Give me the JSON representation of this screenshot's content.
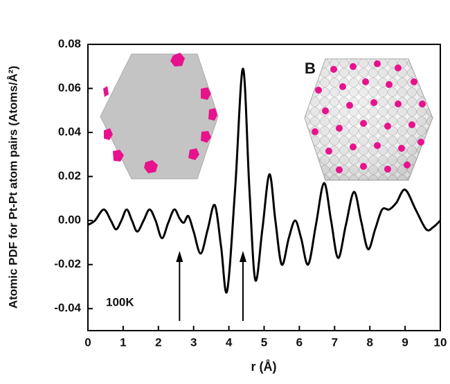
{
  "chart_data": {
    "type": "line",
    "x_label": "r (Å)",
    "y_label": "Atomic PDF for Pt-Pt atom pairs (Atoms/Å²)",
    "annotations": [
      "B",
      "100K"
    ],
    "arrows_x": [
      2.6,
      4.4
    ],
    "xlim": [
      0,
      10
    ],
    "ylim": [
      -0.05,
      0.08
    ],
    "xticks": [
      0,
      1,
      2,
      3,
      4,
      5,
      6,
      7,
      8,
      9,
      10
    ],
    "yticks": [
      0.08,
      0.06,
      0.04,
      0.02,
      {
        "value": 0,
        "label": "0.00"
      },
      -0.02,
      -0.04
    ],
    "color": "#000000",
    "x": [
      0,
      0.2,
      0.45,
      0.65,
      0.8,
      0.95,
      1.1,
      1.25,
      1.4,
      1.58,
      1.75,
      1.92,
      2.1,
      2.28,
      2.45,
      2.6,
      2.72,
      2.85,
      3.0,
      3.2,
      3.4,
      3.6,
      3.78,
      3.95,
      4.18,
      4.4,
      4.58,
      4.75,
      4.95,
      5.15,
      5.32,
      5.5,
      5.7,
      5.88,
      6.05,
      6.25,
      6.47,
      6.7,
      6.9,
      7.1,
      7.32,
      7.55,
      7.75,
      7.95,
      8.15,
      8.35,
      8.55,
      8.75,
      9.0,
      9.3,
      9.6,
      9.8,
      10.0
    ],
    "values": [
      -0.002,
      0,
      0.005,
      0,
      -0.004,
      0,
      0.005,
      0,
      -0.005,
      0,
      0.005,
      0,
      -0.008,
      -0.001,
      0.005,
      0.001,
      -0.001,
      0.002,
      -0.005,
      -0.015,
      -0.004,
      0.007,
      -0.012,
      -0.032,
      0.015,
      0.069,
      0.015,
      -0.027,
      -0.004,
      0.021,
      0,
      -0.02,
      -0.008,
      0,
      -0.008,
      -0.02,
      -0.002,
      0.017,
      0,
      -0.017,
      -0.002,
      0.013,
      0,
      -0.013,
      -0.004,
      0.005,
      0.005,
      0.008,
      0.014,
      0.005,
      -0.004,
      -0.003,
      0
    ]
  }
}
